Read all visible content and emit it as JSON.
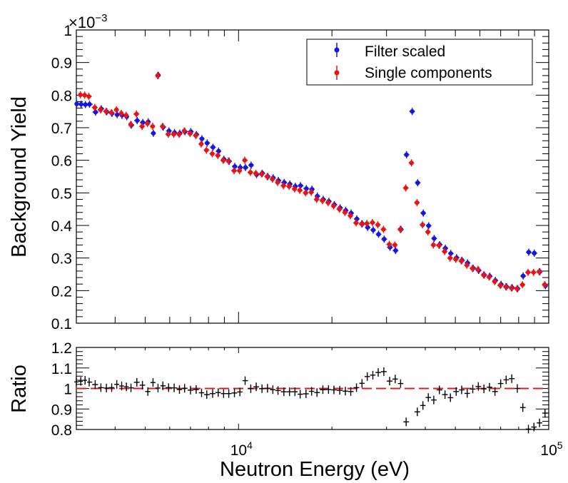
{
  "chart_data": {
    "type": "scatter",
    "xscale": "log",
    "xlim": [
      3000,
      100000
    ],
    "xlabel": "Neutron Energy (eV)",
    "x_tick_labels": [
      {
        "value": 10000,
        "base": "10",
        "exp": "4"
      },
      {
        "value": 100000,
        "base": "10",
        "exp": "5"
      }
    ],
    "top": {
      "ylabel": "Background Yield",
      "exponent_base": "×10",
      "exponent_power": "−3",
      "ylim": [
        0.1,
        1.0
      ],
      "y_ticks": [
        "0.1",
        "0.2",
        "0.3",
        "0.4",
        "0.5",
        "0.6",
        "0.7",
        "0.8",
        "0.9",
        "1"
      ],
      "legend": [
        {
          "label": "Filter scaled",
          "color": "#1414e6"
        },
        {
          "label": "Single components",
          "color": "#e61414"
        }
      ],
      "x": [
        3000,
        3100,
        3200,
        3300,
        3450,
        3600,
        3750,
        3900,
        4050,
        4200,
        4350,
        4500,
        4700,
        4900,
        5100,
        5300,
        5500,
        5700,
        5950,
        6200,
        6450,
        6700,
        7000,
        7300,
        7600,
        7900,
        8250,
        8600,
        8950,
        9300,
        9700,
        10100,
        10500,
        10950,
        11400,
        11900,
        12400,
        12900,
        13400,
        14000,
        14600,
        15200,
        15800,
        16500,
        17200,
        17900,
        18700,
        19500,
        20300,
        21200,
        22100,
        23000,
        24000,
        25000,
        26000,
        27100,
        28200,
        29400,
        30700,
        32000,
        33300,
        34700,
        36200,
        37700,
        39300,
        40900,
        42600,
        44400,
        46300,
        48200,
        50300,
        52400,
        54600,
        56900,
        59300,
        61800,
        64400,
        67100,
        70000,
        72900,
        76000,
        79200,
        82500,
        86000,
        89600,
        93400,
        97300,
        101400
      ],
      "series": [
        {
          "name": "Filter scaled",
          "color": "#1414e6",
          "y": [
            0.773,
            0.772,
            0.771,
            0.772,
            0.748,
            0.758,
            0.749,
            0.744,
            0.74,
            0.738,
            0.734,
            0.708,
            0.722,
            0.716,
            0.718,
            0.683,
            0.861,
            0.702,
            0.69,
            0.685,
            0.683,
            0.688,
            0.688,
            0.679,
            0.666,
            0.653,
            0.64,
            0.628,
            0.603,
            0.597,
            0.581,
            0.578,
            0.578,
            0.585,
            0.556,
            0.56,
            0.55,
            0.546,
            0.538,
            0.532,
            0.527,
            0.52,
            0.522,
            0.513,
            0.511,
            0.49,
            0.48,
            0.474,
            0.464,
            0.454,
            0.446,
            0.438,
            0.42,
            0.405,
            0.394,
            0.386,
            0.373,
            0.358,
            0.333,
            0.323,
            0.388,
            0.617,
            0.75,
            0.531,
            0.438,
            0.399,
            0.36,
            0.341,
            0.33,
            0.314,
            0.301,
            0.293,
            0.285,
            0.269,
            0.262,
            0.248,
            0.244,
            0.231,
            0.219,
            0.212,
            0.209,
            0.206,
            0.245,
            0.318,
            0.315,
            0.258,
            0.215,
            0.198
          ]
        },
        {
          "name": "Single components",
          "color": "#e61414",
          "y": [
            0.8,
            0.801,
            0.8,
            0.796,
            0.762,
            0.755,
            0.75,
            0.746,
            0.755,
            0.744,
            0.738,
            0.71,
            0.742,
            0.704,
            0.713,
            0.704,
            0.86,
            0.704,
            0.68,
            0.68,
            0.68,
            0.69,
            0.682,
            0.676,
            0.65,
            0.631,
            0.62,
            0.615,
            0.6,
            0.598,
            0.568,
            0.568,
            0.6,
            0.563,
            0.56,
            0.558,
            0.55,
            0.542,
            0.532,
            0.522,
            0.52,
            0.512,
            0.508,
            0.5,
            0.502,
            0.48,
            0.476,
            0.47,
            0.46,
            0.45,
            0.44,
            0.43,
            0.408,
            0.405,
            0.406,
            0.409,
            0.402,
            0.388,
            0.342,
            0.34,
            0.388,
            0.515,
            0.592,
            0.47,
            0.402,
            0.38,
            0.34,
            0.339,
            0.32,
            0.3,
            0.296,
            0.291,
            0.278,
            0.268,
            0.265,
            0.248,
            0.242,
            0.228,
            0.216,
            0.212,
            0.208,
            0.206,
            0.218,
            0.256,
            0.256,
            0.258,
            0.218,
            0.188
          ]
        }
      ]
    },
    "bottom": {
      "ylabel": "Ratio",
      "ylim": [
        0.8,
        1.2
      ],
      "y_ticks": [
        "0.8",
        "0.9",
        "1",
        "1.1",
        "1.2"
      ],
      "reference_line": 1.0,
      "reference_color": "#d62020",
      "y": [
        1.032,
        1.035,
        1.04,
        1.031,
        1.019,
        1.004,
        1.002,
        1.004,
        1.02,
        1.012,
        1.008,
        1.003,
        1.03,
        1.016,
        0.985,
        1.029,
        1.002,
        1.013,
        1.004,
        1.003,
        0.995,
        1.001,
        0.992,
        0.995,
        0.979,
        0.97,
        0.975,
        0.98,
        0.975,
        0.975,
        0.978,
        0.983,
        1.038,
        0.999,
        1.008,
        0.999,
        1.001,
        0.994,
        0.99,
        0.984,
        0.984,
        0.984,
        0.972,
        0.974,
        0.986,
        0.98,
        0.994,
        0.995,
        0.993,
        0.991,
        0.987,
        0.985,
        1.004,
        1.025,
        1.058,
        1.065,
        1.078,
        1.082,
        1.036,
        1.046,
        1.024,
        0.837,
        0.788,
        0.886,
        0.917,
        0.956,
        0.944,
        0.993,
        0.97,
        0.955,
        0.985,
        0.993,
        0.976,
        0.997,
        1.01,
        0.998,
        1.006,
        0.985,
        1.024,
        1.042,
        1.048,
        1.0,
        0.907,
        0.802,
        0.812,
        0.832,
        0.88,
        0.883
      ]
    }
  }
}
